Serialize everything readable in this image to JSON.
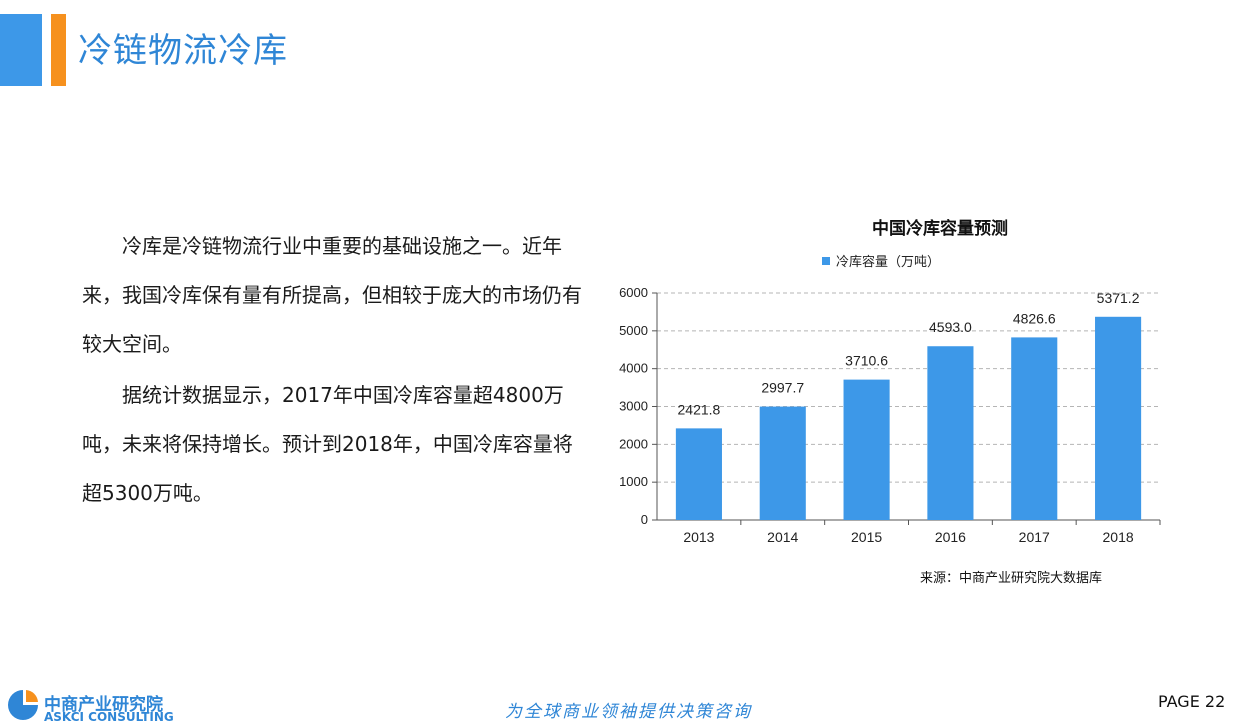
{
  "header": {
    "title": "冷链物流冷库"
  },
  "body_text": {
    "paragraphs": [
      "冷库是冷链物流行业中重要的基础设施之一。近年来，我国冷库保有量有所提高，但相较于庞大的市场仍有较大空间。",
      "据统计数据显示，2017年中国冷库容量超4800万吨，未来将保持增长。预计到2018年，中国冷库容量将超5300万吨。"
    ]
  },
  "chart_data": {
    "type": "bar",
    "title": "中国冷库容量预测",
    "categories": [
      "2013",
      "2014",
      "2015",
      "2016",
      "2017",
      "2018"
    ],
    "series": [
      {
        "name": "冷库容量（万吨）",
        "values": [
          2421.8,
          2997.7,
          3710.6,
          4593.0,
          4826.6,
          5371.2
        ],
        "color": "#3d98e8"
      }
    ],
    "data_labels": [
      "2421.8",
      "2997.7",
      "3710.6",
      "4593.0",
      "4826.6",
      "5371.2"
    ],
    "y_ticks": [
      "0",
      "1000",
      "2000",
      "3000",
      "4000",
      "5000",
      "6000"
    ],
    "ylim": [
      0,
      6000
    ],
    "grid": "horizontal-dashed",
    "legend_position": "top"
  },
  "source": "来源：中商产业研究院大数据库",
  "footer": {
    "logo_cn": "中商产业研究院",
    "logo_en": "ASKCI CONSULTING",
    "slogan": "为全球商业领袖提供决策咨询",
    "page": "PAGE  22"
  },
  "colors": {
    "accent_blue": "#3d98e8",
    "accent_orange": "#f6911e",
    "brand_blue": "#2f86d6"
  }
}
